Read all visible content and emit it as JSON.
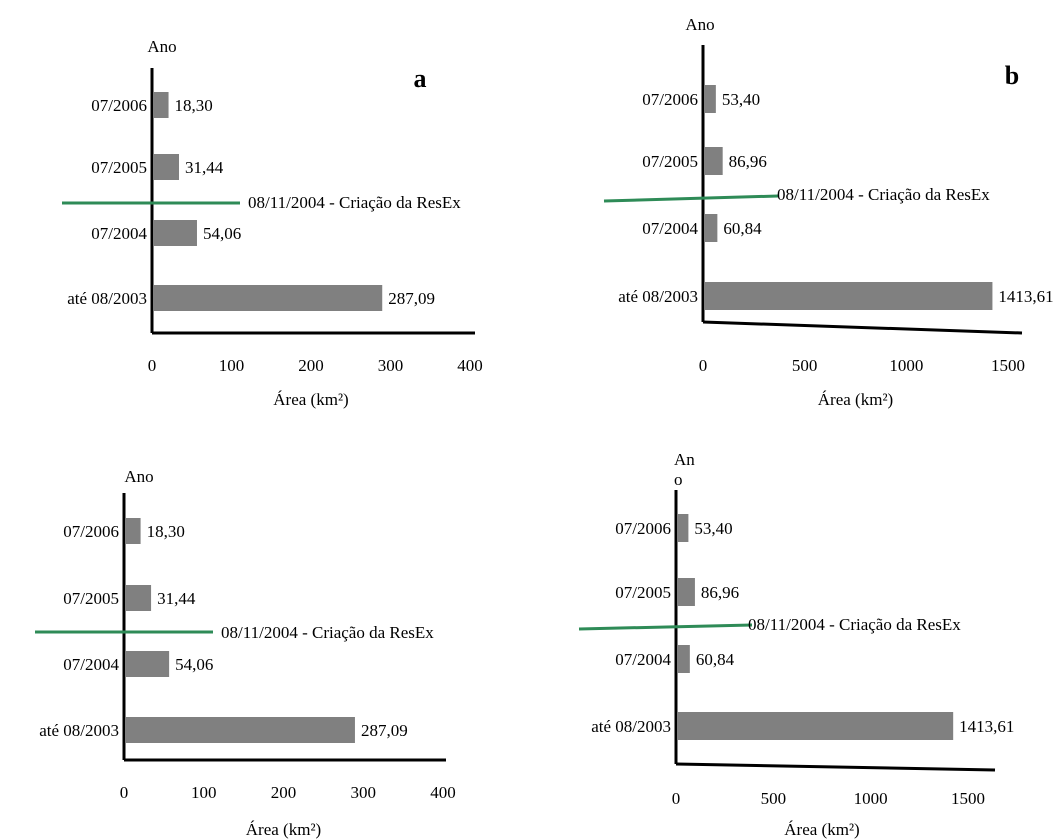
{
  "colors": {
    "bar": "#808080",
    "axis": "#000000",
    "marker": "#2e8b57"
  },
  "chart_data": [
    {
      "type": "bar",
      "orientation": "horizontal",
      "panel_letter": "a",
      "ylabel": "Ano",
      "xlabel": "Área (km²)",
      "xlim": [
        0,
        400
      ],
      "xticks": [
        "0",
        "100",
        "200",
        "300",
        "400"
      ],
      "categories": [
        "07/2006",
        "07/2005",
        "07/2004",
        "até 08/2003"
      ],
      "values": [
        18.3,
        31.44,
        54.06,
        287.09
      ],
      "value_labels": [
        "18,30",
        "31,44",
        "54,06",
        "287,09"
      ],
      "annotation": "08/11/2004 - Criação da ResEx"
    },
    {
      "type": "bar",
      "orientation": "horizontal",
      "panel_letter": "b",
      "ylabel": "Ano",
      "xlabel": "Área (km²)",
      "xlim": [
        0,
        1500
      ],
      "xticks": [
        "0",
        "500",
        "1000",
        "1500"
      ],
      "categories": [
        "07/2006",
        "07/2005",
        "07/2004",
        "até 08/2003"
      ],
      "values": [
        53.4,
        86.96,
        60.84,
        1413.61
      ],
      "value_labels": [
        "53,40",
        "86,96",
        "60,84",
        "1413,61"
      ],
      "annotation": "08/11/2004 - Criação da ResEx"
    },
    {
      "type": "bar",
      "orientation": "horizontal",
      "panel_letter": "",
      "ylabel": "Ano",
      "xlabel": "Área (km²)",
      "xlim": [
        0,
        400
      ],
      "xticks": [
        "0",
        "100",
        "200",
        "300",
        "400"
      ],
      "categories": [
        "07/2006",
        "07/2005",
        "07/2004",
        "até 08/2003"
      ],
      "values": [
        18.3,
        31.44,
        54.06,
        287.09
      ],
      "value_labels": [
        "18,30",
        "31,44",
        "54,06",
        "287,09"
      ],
      "annotation": "08/11/2004 - Criação da ResEx"
    },
    {
      "type": "bar",
      "orientation": "horizontal",
      "panel_letter": "",
      "ylabel_lines": [
        "An",
        "o"
      ],
      "xlabel": "Área (km²)",
      "xlim": [
        0,
        1500
      ],
      "xticks": [
        "0",
        "500",
        "1000",
        "1500"
      ],
      "categories": [
        "07/2006",
        "07/2005",
        "07/2004",
        "até 08/2003"
      ],
      "values": [
        53.4,
        86.96,
        60.84,
        1413.61
      ],
      "value_labels": [
        "53,40",
        "86,96",
        "60,84",
        "1413,61"
      ],
      "annotation": "08/11/2004 - Criação da ResEx"
    }
  ]
}
